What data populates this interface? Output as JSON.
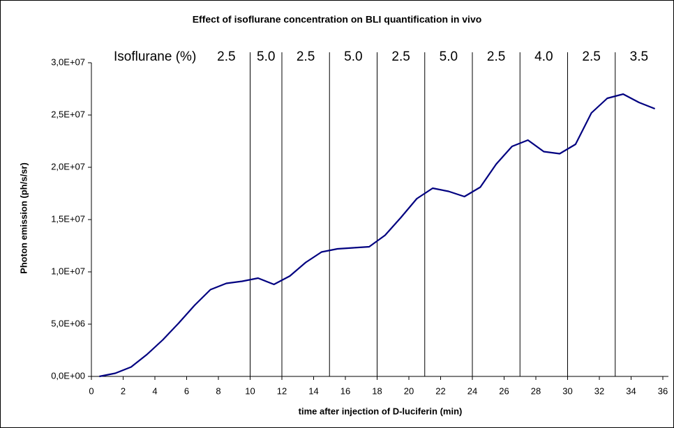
{
  "chart_data": {
    "type": "line",
    "title": "Effect of isoflurane concentration on BLI quantification in vivo",
    "x_label": "time after injection of D-luciferin (min)",
    "y_label": "Photon emission (ph/s/sr)",
    "x": [
      0.5,
      1.5,
      2.5,
      3.5,
      4.5,
      5.5,
      6.5,
      7.5,
      8.5,
      9.5,
      10.5,
      11.5,
      12.5,
      13.5,
      14.5,
      15.5,
      16.5,
      17.5,
      18.5,
      19.5,
      20.5,
      21.5,
      22.5,
      23.5,
      24.5,
      25.5,
      26.5,
      27.5,
      28.5,
      29.5,
      30.5,
      31.5,
      32.5,
      33.5,
      34.5,
      35.5
    ],
    "series": [
      {
        "color": "#000080",
        "values": [
          0,
          300000,
          900000,
          2100000,
          3500000,
          5100000,
          6800000,
          8300000,
          8900000,
          9100000,
          9400000,
          8800000,
          9600000,
          10900000,
          11900000,
          12200000,
          12300000,
          12400000,
          13500000,
          15200000,
          17000000,
          18000000,
          17700000,
          17200000,
          18100000,
          20300000,
          22000000,
          22600000,
          21500000,
          21300000,
          22200000,
          25200000,
          26600000,
          27000000,
          26200000,
          25600000
        ]
      }
    ],
    "xlim": [
      0,
      36
    ],
    "xticks": [
      0,
      2,
      4,
      6,
      8,
      10,
      12,
      14,
      16,
      18,
      20,
      22,
      24,
      26,
      28,
      30,
      32,
      34,
      36
    ],
    "ylim": [
      0,
      30000000
    ],
    "yticks": [
      {
        "value": 0,
        "label": "0,0E+00"
      },
      {
        "value": 5000000,
        "label": "5,0E+06"
      },
      {
        "value": 10000000,
        "label": "1,0E+07"
      },
      {
        "value": 15000000,
        "label": "1,5E+07"
      },
      {
        "value": 20000000,
        "label": "2,0E+07"
      },
      {
        "value": 25000000,
        "label": "2,5E+07"
      },
      {
        "value": 30000000,
        "label": "3,0E+07"
      }
    ],
    "annotations": {
      "label": "Isoflurane (%)",
      "boundaries": [
        10,
        12,
        15,
        18,
        21,
        24,
        27,
        30,
        33
      ],
      "levels": [
        "2.5",
        "5.0",
        "2.5",
        "5.0",
        "2.5",
        "5.0",
        "2.5",
        "4.0",
        "2.5",
        "3.5"
      ]
    }
  }
}
